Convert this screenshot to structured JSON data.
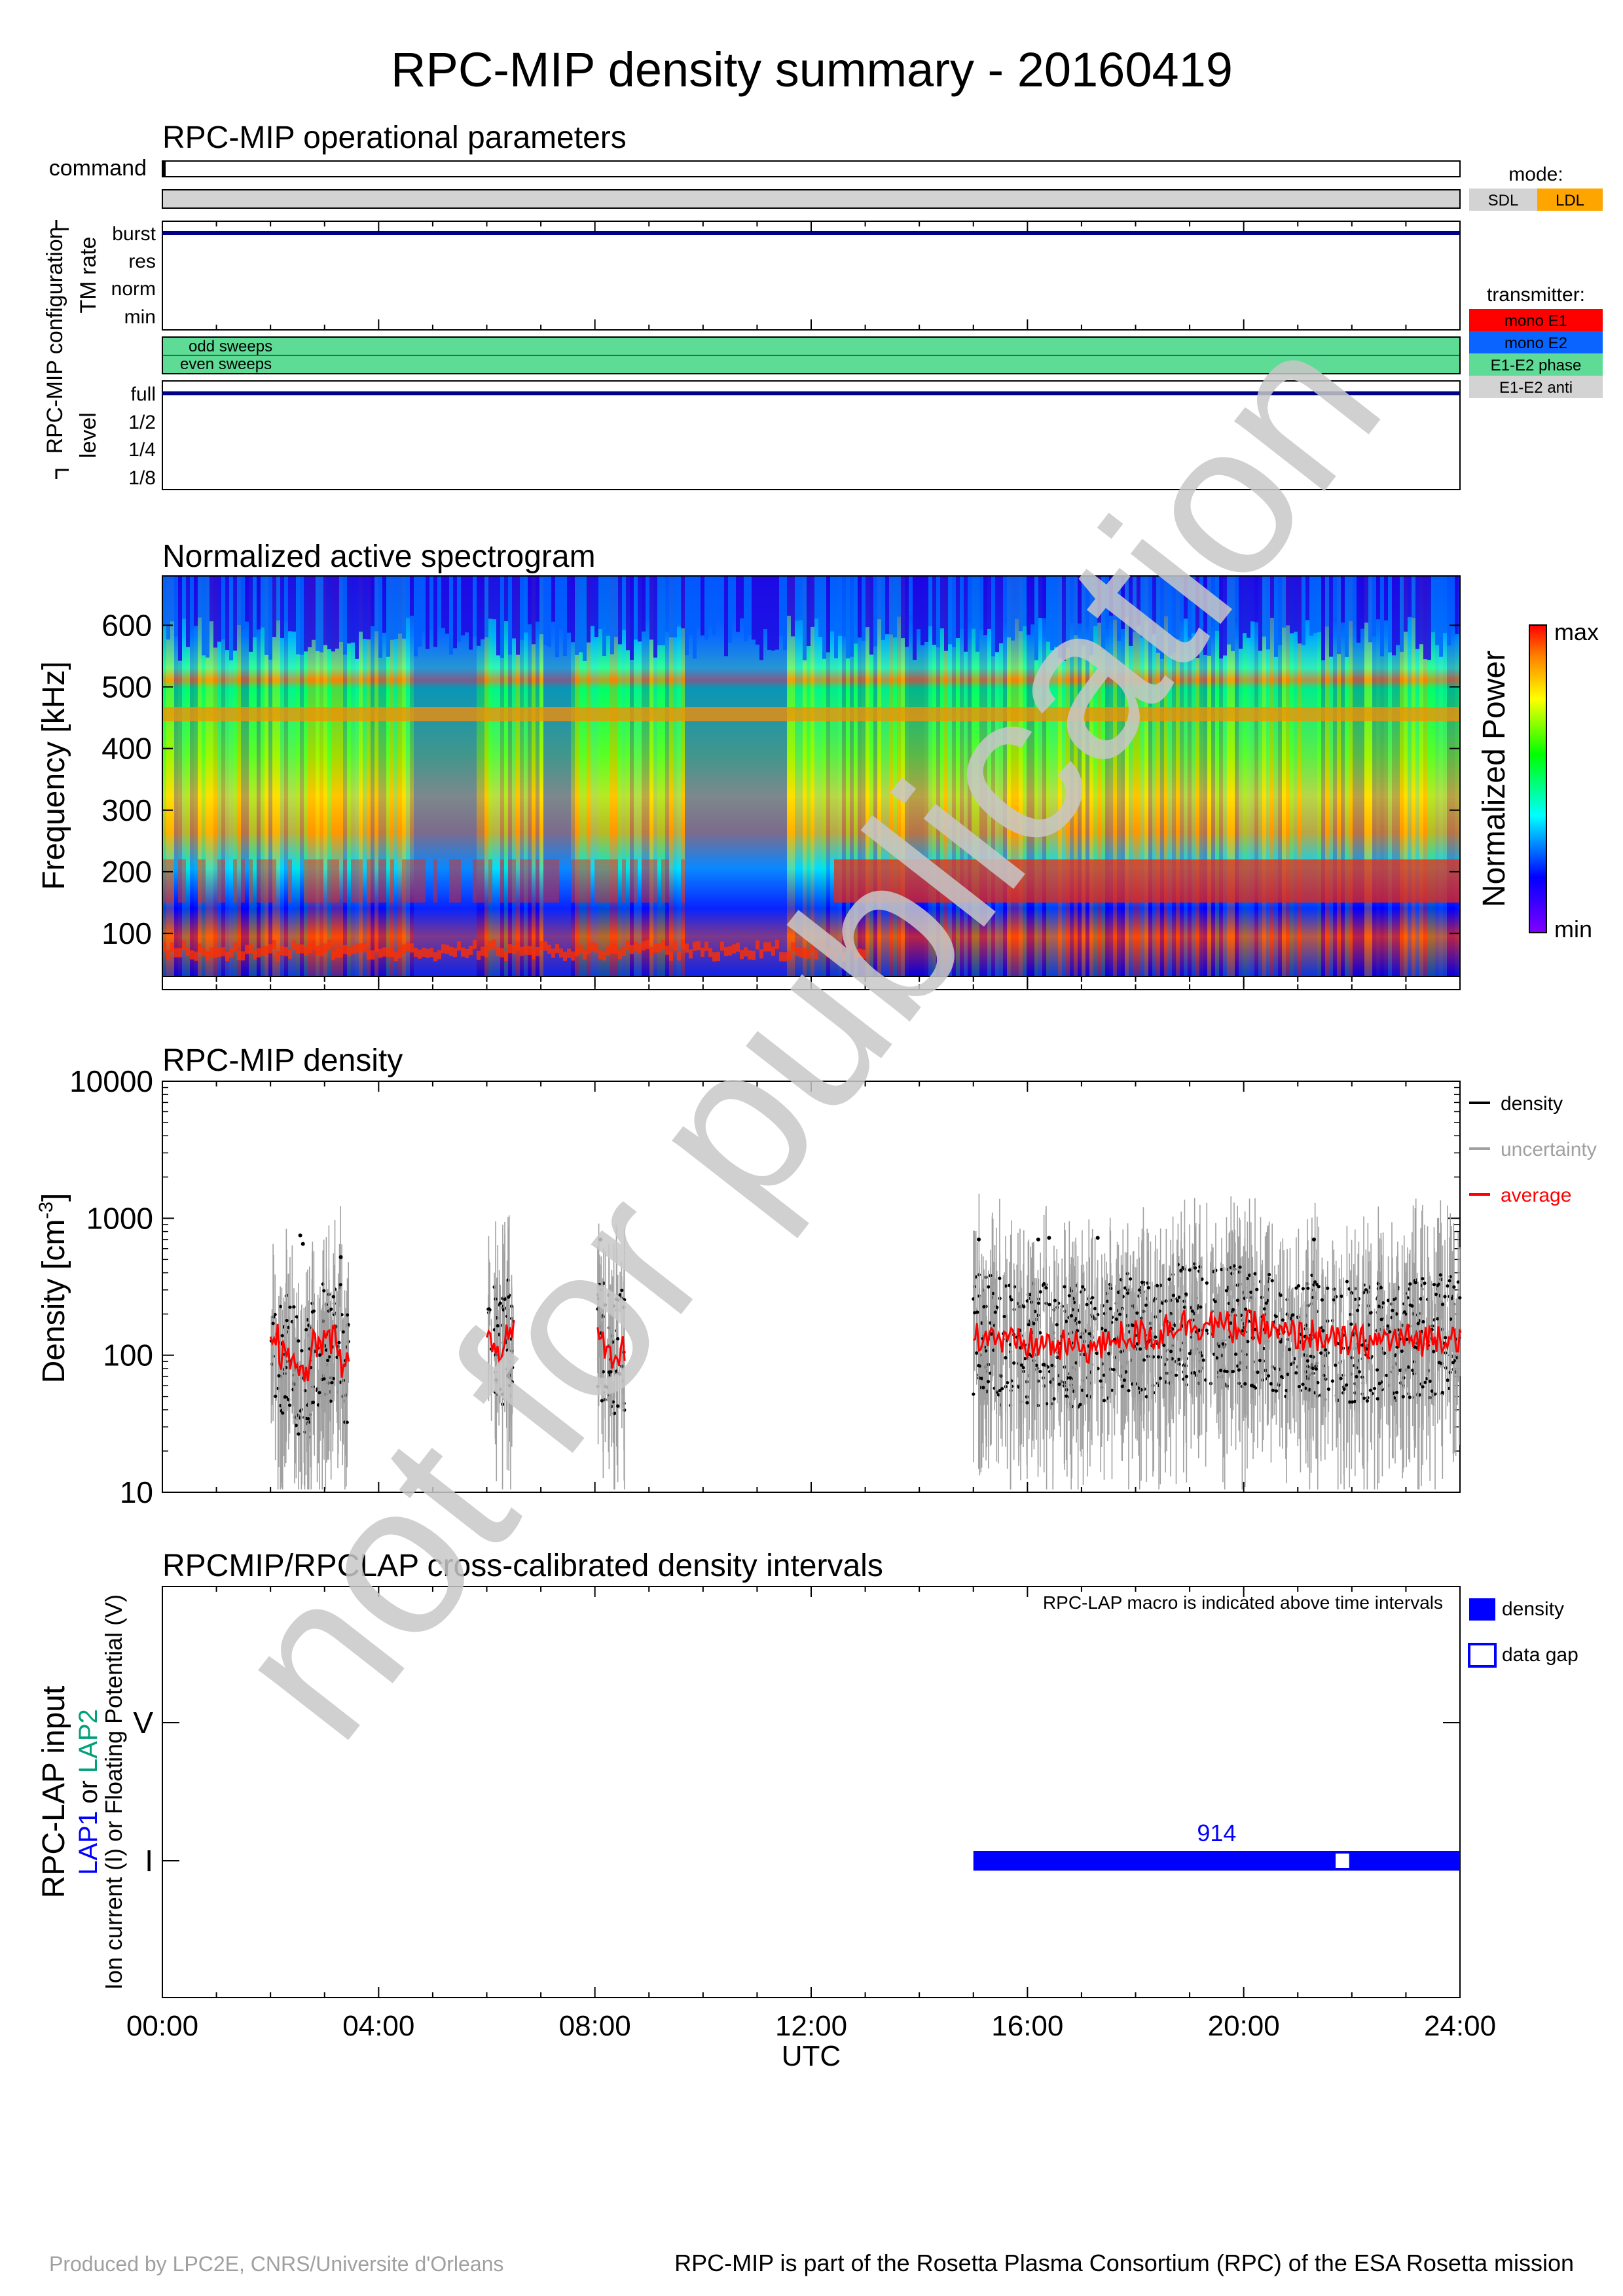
{
  "title": "RPC-MIP density summary - 20160419",
  "panel1": {
    "title": "RPC-MIP operational parameters",
    "command_label": "command",
    "group_label": "RPC-MIP configuration",
    "tm_label": "TM rate",
    "tm_levels": [
      "burst",
      "res",
      "norm",
      "min"
    ],
    "tm_value": "burst",
    "sweep_labels": [
      "odd sweeps",
      "even sweeps"
    ],
    "level_label": "level",
    "levels": [
      "full",
      "1/2",
      "1/4",
      "1/8"
    ],
    "level_value": "full",
    "mode_title": "mode:",
    "modes": [
      {
        "label": "SDL",
        "color": "#d3d3d3"
      },
      {
        "label": "LDL",
        "color": "#ffa500"
      }
    ],
    "transmitter_title": "transmitter:",
    "transmitters": [
      {
        "label": "mono E1",
        "color": "#ff0000"
      },
      {
        "label": "mono E2",
        "color": "#0a64ff"
      },
      {
        "label": "E1-E2 phase",
        "color": "#5edc96"
      },
      {
        "label": "E1-E2 anti",
        "color": "#d3d3d3"
      }
    ]
  },
  "panel2": {
    "title": "Normalized active spectrogram",
    "ylabel": "Frequency [kHz]",
    "yticks": [
      "100",
      "200",
      "300",
      "400",
      "500",
      "600"
    ],
    "colorbar_label": "Normalized Power",
    "cb_max": "max",
    "cb_min": "min"
  },
  "panel3": {
    "title": "RPC-MIP density",
    "ylabel": "Density [cm-3]",
    "ylabel_main": "Density [cm",
    "ylabel_sup": "-3",
    "ylabel_end": "]",
    "yticks": [
      "10",
      "100",
      "1000",
      "10000"
    ],
    "legend": [
      {
        "label": "density",
        "color": "#000000"
      },
      {
        "label": "uncertainty",
        "color": "#a0a0a0"
      },
      {
        "label": "average",
        "color": "#ff0000"
      }
    ]
  },
  "panel4": {
    "title": "RPCMIP/RPCLAP cross-calibrated density intervals",
    "note": "RPC-LAP macro is indicated above time intervals",
    "ylabel1": "RPC-LAP input",
    "ylabel2_a": "LAP1",
    "ylabel2_or": " or ",
    "ylabel2_b": "LAP2",
    "ylabel3": "Ion current (I) or Floating Potential (V)",
    "yticks": [
      "I",
      "V"
    ],
    "macro": "914",
    "legend": [
      {
        "label": "density"
      },
      {
        "label": "data gap"
      }
    ]
  },
  "xaxis": {
    "ticks": [
      "00:00",
      "04:00",
      "08:00",
      "12:00",
      "16:00",
      "20:00",
      "24:00"
    ],
    "label": "UTC"
  },
  "footer": {
    "left": "Produced by LPC2E, CNRS/Universite d'Orleans",
    "right": "RPC-MIP is part of the Rosetta Plasma Consortium (RPC) of the ESA Rosetta mission"
  },
  "watermark": "not for publication",
  "chart_data": [
    {
      "type": "table",
      "title": "RPC-MIP operational parameters",
      "series": [
        {
          "name": "TM rate",
          "x": [
            0,
            24
          ],
          "values": [
            "burst",
            "burst"
          ]
        },
        {
          "name": "level",
          "x": [
            0,
            24
          ],
          "values": [
            "full",
            "full"
          ]
        }
      ]
    },
    {
      "type": "heatmap",
      "title": "Normalized active spectrogram",
      "ylabel": "Frequency [kHz]",
      "xlim": [
        0,
        24
      ],
      "ylim": [
        30,
        680
      ],
      "zlim": [
        "min",
        "max"
      ],
      "features": [
        {
          "name": "persistent line",
          "y": 450
        },
        {
          "name": "high-power band",
          "y": [
            150,
            220
          ]
        },
        {
          "name": "low-frequency fringe",
          "y": [
            40,
            90
          ]
        }
      ]
    },
    {
      "type": "scatter",
      "title": "RPC-MIP density",
      "xlabel": "UTC",
      "ylabel": "Density [cm-3]",
      "yscale": "log",
      "xlim": [
        0,
        24
      ],
      "ylim": [
        10,
        10000
      ],
      "series": [
        {
          "name": "average",
          "x": [
            2.0,
            2.3,
            2.6,
            2.9,
            3.2,
            3.4,
            6.0,
            6.2,
            6.4,
            8.1,
            8.3,
            8.5,
            15.0,
            16.0,
            17.0,
            18.0,
            19.0,
            20.0,
            21.0,
            22.0,
            23.0,
            24.0
          ],
          "values": [
            140,
            100,
            70,
            120,
            130,
            90,
            130,
            115,
            140,
            125,
            100,
            110,
            140,
            120,
            115,
            140,
            170,
            160,
            140,
            125,
            130,
            140
          ]
        }
      ]
    },
    {
      "type": "bar",
      "title": "RPCMIP/RPCLAP cross-calibrated density intervals",
      "xlim": [
        0,
        24
      ],
      "intervals": [
        {
          "start": 15.0,
          "end": 24.0,
          "level": "I",
          "macro": "914"
        }
      ],
      "gaps": [
        {
          "start": 21.7,
          "end": 21.95
        }
      ]
    }
  ]
}
